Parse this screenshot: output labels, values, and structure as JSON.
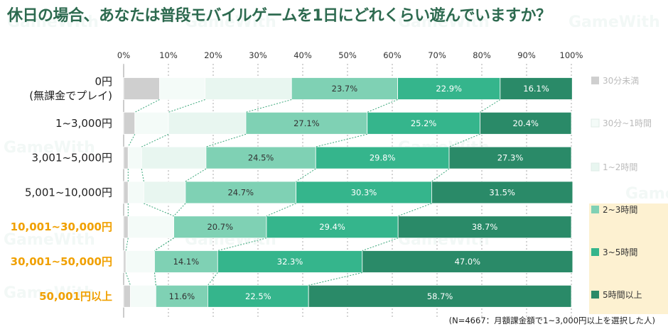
{
  "title": "休日の場合、あなたは普段モバイルゲームを1日にどれくらい遊んでいますか？",
  "footnote": "(N=4667：月額課金額で1~3,000円以上を選択した人)",
  "watermark": "GameWith",
  "colors": {
    "title": "#2d6a4f",
    "highlight_label": "#f0a000",
    "legend_highlight_bg": "#fdf1d1",
    "connector": "#3aa77a"
  },
  "chart_data": {
    "type": "bar",
    "orientation": "horizontal",
    "stacked": true,
    "percent": true,
    "xlim": [
      0,
      100
    ],
    "x_ticks": [
      "0%",
      "10%",
      "20%",
      "30%",
      "40%",
      "50%",
      "60%",
      "70%",
      "80%",
      "90%",
      "100%"
    ],
    "categories": [
      {
        "label": [
          "0円",
          "(無課金でプレイ)"
        ],
        "highlight": false
      },
      {
        "label": [
          "1~3,000円"
        ],
        "highlight": false
      },
      {
        "label": [
          "3,001~5,000円"
        ],
        "highlight": false
      },
      {
        "label": [
          "5,001~10,000円"
        ],
        "highlight": false
      },
      {
        "label": [
          "10,001~30,000円"
        ],
        "highlight": true
      },
      {
        "label": [
          "30,001~50,000円"
        ],
        "highlight": true
      },
      {
        "label": [
          "50,001円以上"
        ],
        "highlight": true
      }
    ],
    "series": [
      {
        "name": "30分未満",
        "color": "#cfcfcf",
        "values": [
          8.0,
          2.5,
          1.0,
          1.0,
          1.0,
          0.5,
          1.5
        ]
      },
      {
        "name": "30分~1時間",
        "color": "#f4fbf8",
        "values": [
          10.2,
          7.5,
          3.0,
          3.5,
          10.2,
          6.4,
          5.7
        ]
      },
      {
        "name": "1~2時間",
        "color": "#e8f6f0",
        "values": [
          19.3,
          17.3,
          14.4,
          9.3,
          0.0,
          0.0,
          0.0
        ]
      },
      {
        "name": "2~3時間",
        "color": "#7fd1b4",
        "values": [
          23.7,
          27.1,
          24.5,
          24.7,
          20.7,
          14.1,
          11.6
        ]
      },
      {
        "name": "3~5時間",
        "color": "#35b58c",
        "values": [
          22.9,
          25.2,
          29.8,
          30.3,
          29.4,
          32.3,
          22.5
        ]
      },
      {
        "name": "5時間以上",
        "color": "#2a8a68",
        "values": [
          16.1,
          20.4,
          27.3,
          31.5,
          38.7,
          47.0,
          58.7
        ]
      }
    ],
    "data_labels": [
      [
        null,
        null,
        null,
        "23.7%",
        "22.9%",
        "16.1%"
      ],
      [
        null,
        null,
        null,
        "27.1%",
        "25.2%",
        "20.4%"
      ],
      [
        null,
        null,
        null,
        "24.5%",
        "29.8%",
        "27.3%"
      ],
      [
        null,
        null,
        null,
        "24.7%",
        "30.3%",
        "31.5%"
      ],
      [
        null,
        null,
        null,
        "20.7%",
        "29.4%",
        "38.7%"
      ],
      [
        null,
        null,
        null,
        "14.1%",
        "32.3%",
        "47.0%"
      ],
      [
        null,
        null,
        null,
        "11.6%",
        "22.5%",
        "58.7%"
      ]
    ],
    "legend_position": "right",
    "legend_highlight": [
      "2~3時間",
      "3~5時間",
      "5時間以上"
    ]
  }
}
